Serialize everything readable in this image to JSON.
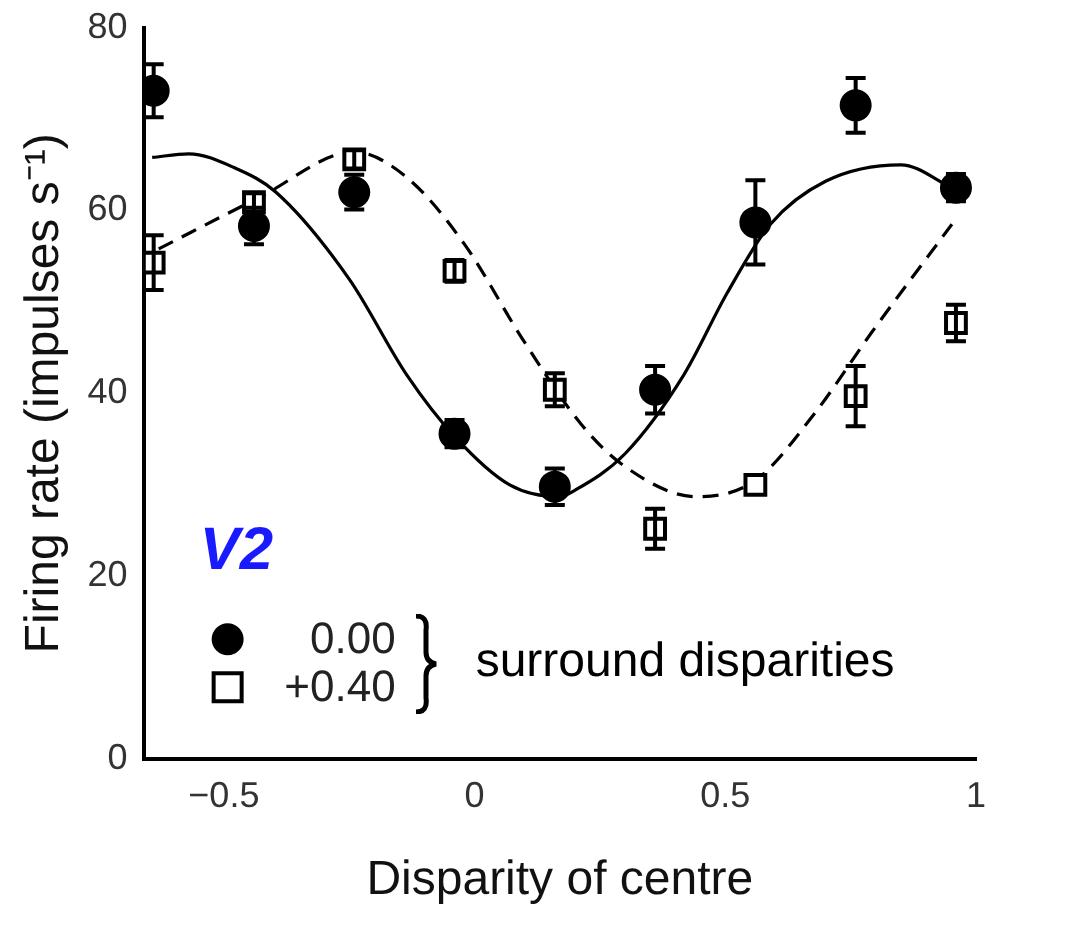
{
  "chart_data": {
    "type": "scatter",
    "xlabel": "Disparity of centre",
    "ylabel": "Firing rate (impulses s⁻¹)",
    "xlim": [
      -0.66,
      1
    ],
    "xticks": [
      {
        "value": -0.5,
        "label": "−0.5"
      },
      0,
      0.5,
      1
    ],
    "ylim": [
      0,
      80
    ],
    "yticks": [
      0,
      20,
      40,
      60,
      80
    ],
    "legend": "bottom left",
    "legend_title": "surround disparities",
    "annotations": [
      "V2"
    ],
    "series": [
      {
        "name": "0.00",
        "type": "scatter",
        "color": "#000000",
        "marker": "circle",
        "x": [
          -0.64,
          -0.44,
          -0.24,
          -0.04,
          0.16,
          0.36,
          0.56,
          0.76,
          0.96
        ],
        "values": [
          73.1,
          58.3,
          62,
          35.6,
          29.8,
          40.4,
          58.7,
          71.5,
          62.5
        ],
        "errors": [
          2.9,
          2,
          1.9,
          1.5,
          2,
          2.6,
          4.6,
          3,
          1.5
        ]
      },
      {
        "name": "+0.40",
        "type": "scatter",
        "color": "#000000",
        "marker": "square",
        "x": [
          -0.64,
          -0.44,
          -0.24,
          -0.04,
          0.16,
          0.36,
          0.56,
          0.76,
          0.96
        ],
        "values": [
          54.3,
          60.9,
          65.6,
          53.4,
          40.4,
          25.2,
          30,
          39.7,
          47.7
        ],
        "errors": [
          3,
          1,
          1,
          1.2,
          1.8,
          2.2,
          null,
          3.3,
          2
        ]
      },
      {
        "type": "line",
        "color": "#000000",
        "marker": "none",
        "line_style": "solid",
        "x": [
          -0.643,
          -0.57,
          -0.48,
          -0.396,
          -0.25,
          -0.135,
          -0.04,
          0.07,
          0.17,
          0.2,
          0.3,
          0.417,
          0.504,
          0.59,
          0.7,
          0.85,
          0.952
        ],
        "values": [
          65.8,
          66.2,
          64.7,
          62,
          52.5,
          42,
          35.3,
          30,
          28.7,
          29.4,
          33.4,
          42,
          51,
          58.5,
          63.2,
          65,
          62.5
        ]
      },
      {
        "type": "line",
        "color": "#000000",
        "marker": "none",
        "line_style": "dashed",
        "x": [
          -0.63,
          -0.43,
          -0.24,
          -0.135,
          -0.02,
          0.095,
          0.213,
          0.3,
          0.443,
          0.56,
          0.678,
          0.791,
          0.952
        ],
        "values": [
          55.8,
          61.4,
          66.4,
          63.6,
          56.3,
          46,
          36.6,
          32,
          28.7,
          30.5,
          37.8,
          46.6,
          58.5
        ]
      }
    ]
  }
}
